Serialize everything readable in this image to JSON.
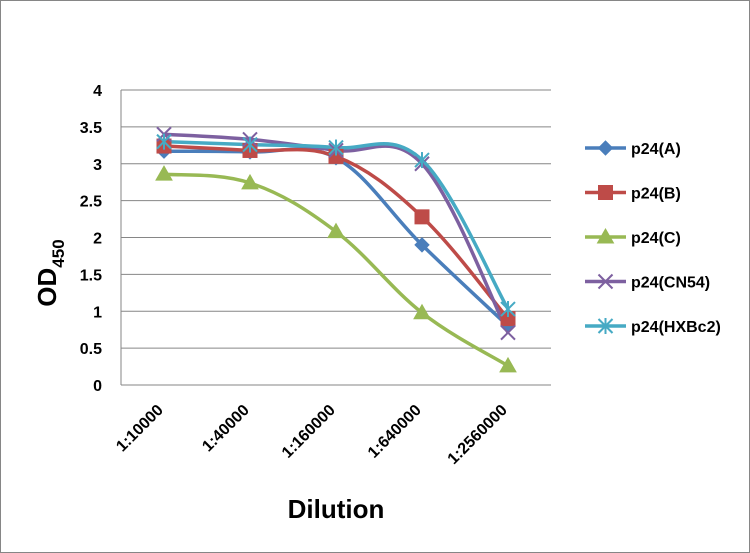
{
  "chart_data": {
    "type": "line",
    "categories": [
      "1:10000",
      "1:40000",
      "1:160000",
      "1:640000",
      "1:2560000"
    ],
    "series": [
      {
        "name": "p24(A)",
        "values": [
          3.17,
          3.16,
          3.08,
          1.9,
          0.8
        ],
        "color": "#4A7EBB",
        "marker": "diamond"
      },
      {
        "name": "p24(B)",
        "values": [
          3.24,
          3.18,
          3.1,
          2.28,
          0.9
        ],
        "color": "#BE4B48",
        "marker": "square"
      },
      {
        "name": "p24(C)",
        "values": [
          2.86,
          2.74,
          2.08,
          0.98,
          0.26
        ],
        "color": "#98B954",
        "marker": "triangle"
      },
      {
        "name": "p24(CN54)",
        "values": [
          3.4,
          3.33,
          3.18,
          3.0,
          0.71
        ],
        "color": "#7D60A0",
        "marker": "x"
      },
      {
        "name": "p24(HXBc2)",
        "values": [
          3.3,
          3.26,
          3.22,
          3.05,
          1.03
        ],
        "color": "#46AAC4",
        "marker": "star"
      }
    ],
    "ylabel": {
      "main": "OD",
      "sub": "450"
    },
    "xlabel": "Dilution",
    "ylim": [
      0,
      4
    ],
    "yticks": [
      "0",
      "0.5",
      "1",
      "1.5",
      "2",
      "2.5",
      "3",
      "3.5",
      "4"
    ],
    "grid": true,
    "legend": "right"
  }
}
